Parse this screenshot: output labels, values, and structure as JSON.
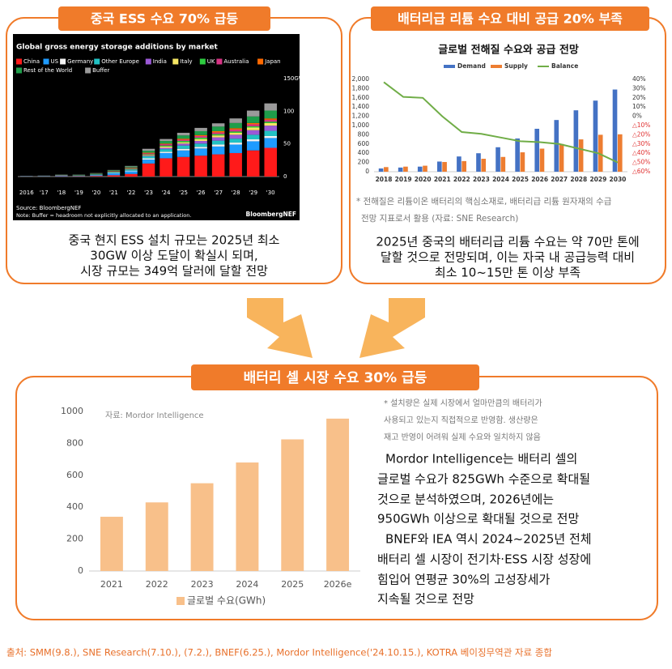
{
  "panels": [
    {
      "header": "중국 ESS 수요 70% 급등",
      "body": [
        "중국 현지 ESS 설치 규모는 2025년 최소",
        "30GW 이상 도달이 확실시 되며,",
        "시장 규모는 349억 달러에 달할 전망"
      ]
    },
    {
      "header": "배터리급 리튬 수요 대비 공급 20% 부족",
      "note": [
        "* 전해질은 리튬이온 배터리의 핵심소재로, 배터리급 리튬 원자재의 수급",
        "전망 지표로서 활용 (자료: SNE Research)"
      ],
      "body": [
        "2025년 중국의 배터리급 리튬 수요는 약 70만 톤에",
        "달할 것으로 전망되며, 이는 자국 내 공급능력 대비",
        "최소 10~15만 톤 이상 부족"
      ]
    },
    {
      "header": "배터리 셀 시장 수요 30% 급등",
      "note": [
        "* 설치량은 실제 시장에서 얼마만큼의 배터리가",
        "사용되고 있는지 직접적으로 반영함. 생산량은",
        "재고 반영이 어려워 실제 수요와 일치하지 않음"
      ],
      "body": [
        "Mordor Intelligence는 배터리 셀의",
        "글로벌 수요가 825GWh 수준으로 확대될",
        "것으로 분석하였으며, 2026년에는",
        "950GWh 이상으로 확대될 것으로 전망",
        "BNEF와 IEA 역시 2024~2025년 전체",
        "배터리 셀 시장이 전기차·ESS 시장 성장에",
        "힘입어 연평균 30%의 고성장세가",
        "지속될 것으로 전망"
      ]
    }
  ],
  "footer": "출처: SMM(9.8.), SNE Research(7.10.), (7.2.), BNEF(6.25.), Mordor Intelligence('24.10.15.), KOTRA 베이징무역관 자료 종합",
  "chart_data": [
    {
      "type": "bar",
      "stacked": true,
      "title": "Global gross energy storage additions by market",
      "source": "Source: BloombergNEF",
      "note": "Note: Buffer = headroom not explicitly allocated to an application.",
      "logo": "BloombergNEF",
      "categories": [
        "2016",
        "'17",
        "'18",
        "'19",
        "'20",
        "'21",
        "'22",
        "'23",
        "'24",
        "'25",
        "'26",
        "'27",
        "'28",
        "'29",
        "'30"
      ],
      "series": [
        {
          "name": "China",
          "color": "#ff1a1a",
          "values": [
            0.2,
            0.3,
            0.5,
            0.5,
            1,
            2,
            4,
            20,
            28,
            30,
            32,
            34,
            36,
            40,
            44
          ]
        },
        {
          "name": "US",
          "color": "#1e9bff",
          "values": [
            0.3,
            0.4,
            0.8,
            0.6,
            1.2,
            3,
            4,
            6,
            8,
            10,
            11,
            12,
            13,
            14,
            15
          ]
        },
        {
          "name": "Germany",
          "color": "#f2f2f2",
          "values": [
            0.1,
            0.2,
            0.4,
            0.3,
            0.4,
            0.8,
            1,
            2,
            2,
            2.5,
            2.5,
            3,
            3,
            3,
            3
          ]
        },
        {
          "name": "Other Europe",
          "color": "#22c1c3",
          "values": [
            0.1,
            0.1,
            0.2,
            0.3,
            0.5,
            1,
            1.5,
            3,
            4,
            5,
            5,
            6,
            6,
            7,
            8
          ]
        },
        {
          "name": "India",
          "color": "#9b59d6",
          "values": [
            0,
            0,
            0,
            0,
            0.1,
            0.2,
            0.5,
            1,
            2,
            3,
            4,
            5,
            6,
            7,
            8
          ]
        },
        {
          "name": "Italy",
          "color": "#f5e663",
          "values": [
            0,
            0,
            0,
            0,
            0.1,
            0.2,
            0.5,
            1,
            2,
            2,
            3,
            3,
            3,
            4,
            4
          ]
        },
        {
          "name": "UK",
          "color": "#2ecc40",
          "values": [
            0,
            0,
            0.1,
            0.2,
            0.3,
            0.5,
            0.8,
            1,
            1.5,
            2,
            2,
            2,
            2,
            2,
            2
          ]
        },
        {
          "name": "Australia",
          "color": "#d63384",
          "values": [
            0.1,
            0.1,
            0.2,
            0.2,
            0.3,
            0.5,
            1,
            1.5,
            2,
            2,
            2.5,
            2.5,
            3,
            3,
            3
          ]
        },
        {
          "name": "Japan",
          "color": "#ff6a00",
          "values": [
            0,
            0,
            0.1,
            0.1,
            0.2,
            0.4,
            0.5,
            1,
            1,
            1.5,
            1.5,
            2,
            2,
            2,
            2
          ]
        },
        {
          "name": "Rest of the World",
          "color": "#1e9e4a",
          "values": [
            0.1,
            0.2,
            0.4,
            0.5,
            0.7,
            1,
            1.5,
            3,
            4,
            5,
            6,
            7,
            8,
            10,
            12
          ]
        },
        {
          "name": "Buffer",
          "color": "#9a9a9a",
          "values": [
            0.1,
            0.2,
            0.3,
            0.3,
            0.5,
            0.5,
            1,
            3,
            3,
            4,
            5,
            5,
            7,
            9,
            11
          ]
        }
      ],
      "ylim": [
        0,
        150
      ],
      "yticks": [
        0,
        50,
        100,
        {
          "value": 150,
          "label": "150GW"
        }
      ],
      "grid": false
    },
    {
      "type": "combo",
      "title": "글로벌 전해질 수요와 공급 전망",
      "categories": [
        "2018",
        "2019",
        "2020",
        "2021",
        "2022",
        "2023",
        "2024",
        "2025",
        "2026",
        "2027",
        "2028",
        "2029",
        "2030"
      ],
      "series": [
        {
          "name": "Demand",
          "color": "#4472c4",
          "values": [
            70,
            90,
            110,
            220,
            330,
            400,
            530,
            720,
            930,
            1120,
            1330,
            1540,
            1780
          ]
        },
        {
          "name": "Supply",
          "color": "#ed7d31",
          "values": [
            100,
            110,
            130,
            210,
            230,
            280,
            320,
            420,
            500,
            600,
            700,
            800,
            810
          ]
        },
        {
          "name": "Balance",
          "color": "#70ad47",
          "axis": "y2",
          "values": [
            37,
            21,
            20,
            0,
            -17,
            -19,
            -23,
            -27,
            -28,
            -30,
            -35,
            -40,
            -50
          ]
        }
      ],
      "ylim": [
        0,
        2000
      ],
      "yticks": [
        0,
        200,
        400,
        600,
        800,
        {
          "value": 1000,
          "label": "1,000"
        },
        {
          "value": 1200,
          "label": "1,200"
        },
        {
          "value": 1400,
          "label": "1,400"
        },
        {
          "value": 1600,
          "label": "1,600"
        },
        {
          "value": 1800,
          "label": "1,800"
        },
        {
          "value": 2000,
          "label": "2,000"
        }
      ],
      "y2lim": [
        -60,
        40
      ],
      "y2ticks": [
        {
          "value": 40,
          "label": "40%"
        },
        {
          "value": 30,
          "label": "30%"
        },
        {
          "value": 20,
          "label": "20%"
        },
        {
          "value": 10,
          "label": "10%"
        },
        {
          "value": 0,
          "label": "0%"
        },
        {
          "value": -10,
          "label": "△10%"
        },
        {
          "value": -20,
          "label": "△20%"
        },
        {
          "value": -30,
          "label": "△30%"
        },
        {
          "value": -40,
          "label": "△40%"
        },
        {
          "value": -50,
          "label": "△50%"
        },
        {
          "value": -60,
          "label": "△60%"
        }
      ],
      "grid": false
    },
    {
      "type": "bar",
      "note": "자료: Mordor Intelligence",
      "categories": [
        "2021",
        "2022",
        "2023",
        "2024",
        "2025",
        "2026e"
      ],
      "series": [
        {
          "name": "글로벌 수요(GWh)",
          "color": "#f8c08a",
          "values": [
            340,
            430,
            550,
            680,
            825,
            955
          ]
        }
      ],
      "ylim": [
        0,
        1000
      ],
      "yticks": [
        0,
        200,
        400,
        600,
        800,
        1000
      ],
      "grid": false
    }
  ]
}
